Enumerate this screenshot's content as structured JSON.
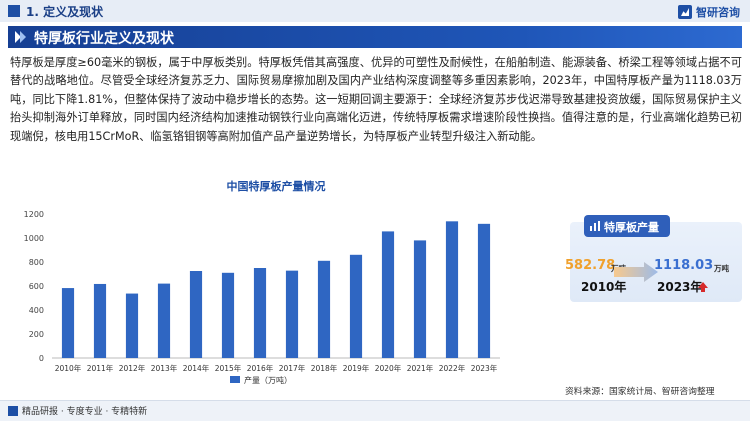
{
  "header": {
    "section": "1. 定义及现状",
    "brand": "智研咨询",
    "brand_icon": "logo-icon"
  },
  "title": "特厚板行业定义及现状",
  "paragraph": "特厚板是厚度≥60毫米的钢板，属于中厚板类别。特厚板凭借其高强度、优异的可塑性及耐候性，在船舶制造、能源装备、桥梁工程等领域占据不可替代的战略地位。尽管受全球经济复苏乏力、国际贸易摩擦加剧及国内产业结构深度调整等多重因素影响，2023年，中国特厚板产量为1118.03万吨，同比下降1.81%，但整体保持了波动中稳步增长的态势。这一短期回调主要源于：全球经济复苏步伐迟滞导致基建投资放缓，国际贸易保护主义抬头抑制海外订单释放，同时国内经济结构加速推动钢铁行业向高端化迈进，传统特厚板需求增速阶段性换挡。值得注意的是，行业高端化趋势已初现端倪，核电用15CrMoR、临氢铬钼钢等高附加值产品产量逆势增长，为特厚板产业转型升级注入新动能。",
  "chart_data": {
    "type": "bar",
    "title": "中国特厚板产量情况",
    "categories": [
      "2010年",
      "2011年",
      "2012年",
      "2013年",
      "2014年",
      "2015年",
      "2016年",
      "2017年",
      "2018年",
      "2019年",
      "2020年",
      "2021年",
      "2022年",
      "2023年"
    ],
    "series": [
      {
        "name": "产量（万吨）",
        "values": [
          582.78,
          617,
          537,
          620,
          725,
          710,
          750,
          728,
          810,
          860,
          1055,
          980,
          1139,
          1118.03
        ]
      }
    ],
    "yticks": [
      0,
      200,
      400,
      600,
      800,
      1000,
      1200
    ],
    "ylim": [
      0,
      1250
    ],
    "grid": false,
    "legend": "bottom",
    "bar_color": "#2f66c2"
  },
  "side_card": {
    "title": "特厚板产量",
    "value_start": "582.78",
    "value_end": "1118.03",
    "unit": "万吨",
    "year_start": "2010年",
    "year_end": "2023年",
    "color_start": "#f0a12d",
    "color_end": "#3a6fd0",
    "trend_color": "#d62a2a"
  },
  "footer": {
    "slogan": "精品研报 · 专度专业 · 专精特新",
    "source": "资料来源：国家统计局、智研咨询整理"
  }
}
